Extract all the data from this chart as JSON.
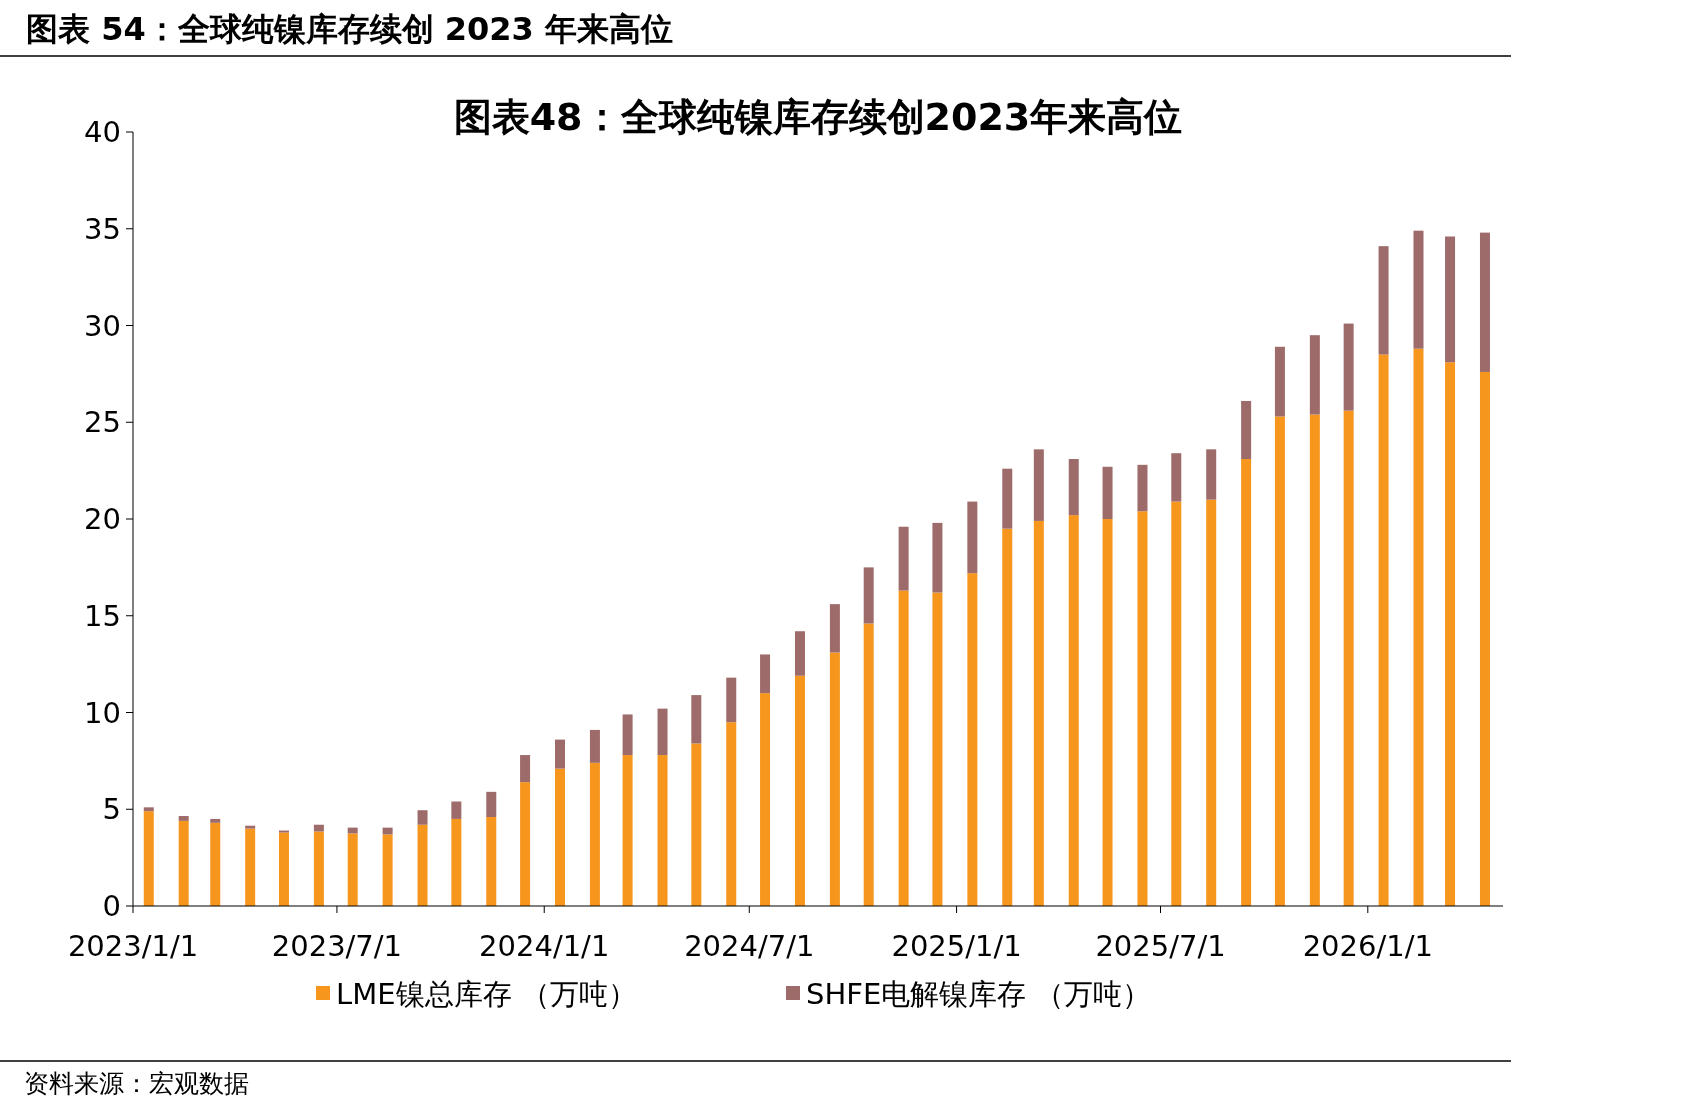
{
  "chart_data": {
    "type": "bar",
    "stacked": true,
    "title": "图表 54：全球纯镍库存续创 2023 年来高位",
    "subtitle": "图表48：全球纯镍库存续创2023年来高位",
    "x": [
      "2023-01-15",
      "2023-02-15",
      "2023-03-15",
      "2023-04-15",
      "2023-05-15",
      "2023-06-15",
      "2023-07-15",
      "2023-08-15",
      "2023-09-15",
      "2023-10-15",
      "2023-11-15",
      "2023-12-15",
      "2024-01-15",
      "2024-02-15",
      "2024-03-15",
      "2024-04-15",
      "2024-05-15",
      "2024-06-15",
      "2024-07-15",
      "2024-08-15",
      "2024-09-15",
      "2024-10-15",
      "2024-11-15",
      "2024-12-15",
      "2025-01-15",
      "2025-02-15",
      "2025-03-15",
      "2025-04-15",
      "2025-05-15",
      "2025-06-15",
      "2025-07-15",
      "2025-08-15",
      "2025-09-15",
      "2025-10-15",
      "2025-11-15",
      "2025-12-15",
      "2026-01-15",
      "2026-02-15",
      "2026-03-15",
      "2026-04-15"
    ],
    "series": [
      {
        "name": "LME镍总库存 （万吨）",
        "color": "#f7961d",
        "values": [
          4.9,
          4.4,
          4.3,
          4.0,
          3.8,
          3.85,
          3.75,
          3.7,
          4.2,
          4.5,
          4.6,
          6.4,
          7.1,
          7.4,
          7.8,
          7.8,
          8.4,
          9.5,
          11.0,
          11.9,
          13.1,
          14.6,
          16.3,
          16.2,
          17.2,
          19.5,
          19.9,
          20.2,
          20.0,
          20.4,
          20.9,
          21.0,
          23.1,
          25.3,
          25.4,
          25.6,
          28.5,
          28.8,
          28.1,
          27.6
        ]
      },
      {
        "name": "SHFE电解镍库存 （万吨）",
        "color": "#9e6b6b",
        "values": [
          0.2,
          0.25,
          0.2,
          0.15,
          0.1,
          0.35,
          0.3,
          0.35,
          0.75,
          0.9,
          1.3,
          1.4,
          1.5,
          1.7,
          2.1,
          2.4,
          2.5,
          2.3,
          2.0,
          2.3,
          2.5,
          2.9,
          3.3,
          3.6,
          3.7,
          3.1,
          3.7,
          2.9,
          2.7,
          2.4,
          2.5,
          2.6,
          3.0,
          3.6,
          4.1,
          4.5,
          5.6,
          6.1,
          6.5,
          7.2
        ]
      }
    ],
    "xlim": [
      "2023-01-01",
      "2026-05-01"
    ],
    "xticks": [
      {
        "value": "2023-01-01",
        "label": "2023/1/1"
      },
      {
        "value": "2023-07-01",
        "label": "2023/7/1"
      },
      {
        "value": "2024-01-01",
        "label": "2024/1/1"
      },
      {
        "value": "2024-07-01",
        "label": "2024/7/1"
      },
      {
        "value": "2025-01-01",
        "label": "2025/1/1"
      },
      {
        "value": "2025-07-01",
        "label": "2025/7/1"
      },
      {
        "value": "2026-01-01",
        "label": "2026/1/1"
      }
    ],
    "ylim": [
      0,
      40
    ],
    "yticks": [
      0,
      5,
      10,
      15,
      20,
      25,
      30,
      35,
      40
    ],
    "grid": false,
    "legend": "bottom",
    "annotations": [
      "资料来源：宏观数据"
    ]
  }
}
